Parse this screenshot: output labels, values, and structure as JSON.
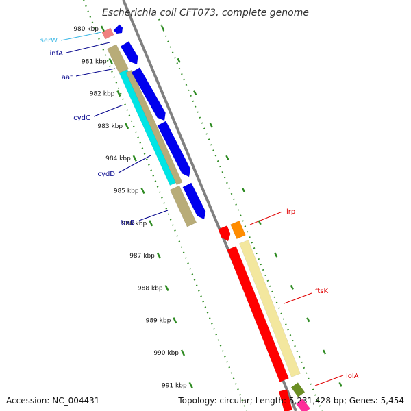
{
  "title": "Escherichia coli CFT073, complete genome",
  "ruler": {
    "ticks": [
      "980 kbp",
      "981 kbp",
      "982 kbp",
      "983 kbp",
      "984 kbp",
      "985 kbp",
      "986 kbp",
      "987 kbp",
      "988 kbp",
      "989 kbp",
      "990 kbp",
      "991 kbp"
    ],
    "tick_color": "#2e8b22"
  },
  "genes": [
    {
      "name": "serW",
      "color": "#3cb8e6",
      "fill": "#f08080"
    },
    {
      "name": "infA",
      "color": "#00008b",
      "fill": "#0000ee"
    },
    {
      "name": "aat",
      "color": "#00008b",
      "fill": "#0000ee"
    },
    {
      "name": "cydC",
      "color": "#00008b",
      "fill": "#0000ee"
    },
    {
      "name": "cydD",
      "color": "#00008b",
      "fill": "#0000ee"
    },
    {
      "name": "trxB",
      "color": "#00008b",
      "fill": "#0000ee"
    },
    {
      "name": "lrp",
      "color": "#e00000",
      "fill": "#ff0000"
    },
    {
      "name": "ftsK",
      "color": "#e00000",
      "fill": "#ff0000"
    },
    {
      "name": "lolA",
      "color": "#e00000",
      "fill": "#ff0000"
    }
  ],
  "colors": {
    "cds": "#b8ac78",
    "trna": "#00e5e5",
    "cds_right": "#f3e79e",
    "orange": "#ff8c00",
    "backbone": "#808080"
  },
  "footer": {
    "accession": "Accession: NC_004431",
    "topology": "Topology: circular; Length: 5,231,428 bp; Genes: 5,454"
  }
}
